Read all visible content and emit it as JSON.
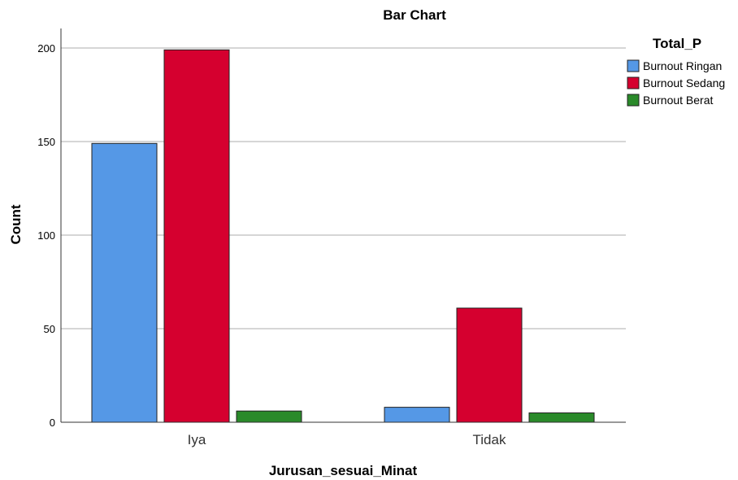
{
  "chart_data": {
    "type": "bar",
    "title": "Bar Chart",
    "xlabel": "Jurusan_sesuai_Minat",
    "ylabel": "Count",
    "categories": [
      "Iya",
      "Tidak"
    ],
    "series": [
      {
        "name": "Burnout Ringan",
        "values": [
          149,
          8
        ],
        "color": "#5598e6"
      },
      {
        "name": "Burnout Sedang",
        "values": [
          199,
          61
        ],
        "color": "#d5002f"
      },
      {
        "name": "Burnout Berat",
        "values": [
          6,
          5
        ],
        "color": "#2a8a2a"
      }
    ],
    "ylim": [
      0,
      210
    ],
    "yticks": [
      0,
      50,
      100,
      150,
      200
    ],
    "grid": true,
    "legend": {
      "title": "Total_P",
      "position": "top-right"
    }
  }
}
